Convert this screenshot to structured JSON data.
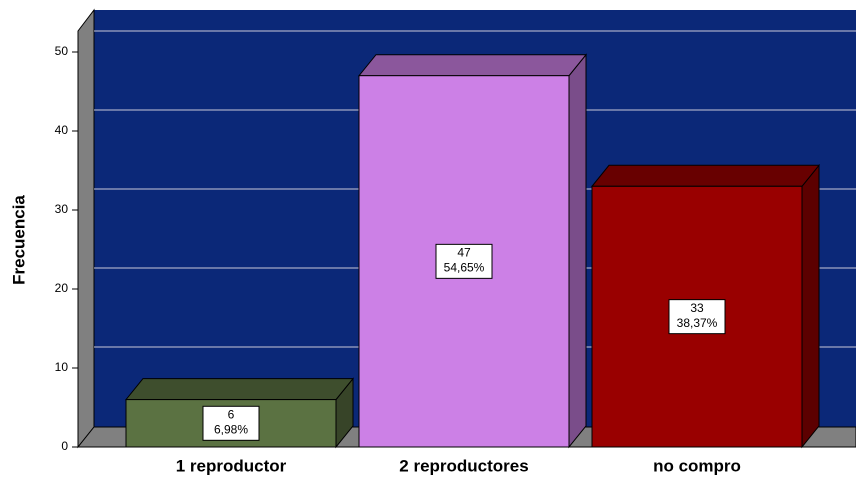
{
  "chart_data": {
    "type": "bar3d",
    "y_label": "Frecuencia",
    "categories": [
      "1 reproductor",
      "2 reproductores",
      "no compro"
    ],
    "values": [
      6,
      47,
      33
    ],
    "percentages": [
      6.98,
      54.65,
      38.37
    ],
    "percentage_labels": [
      "6,98%",
      "54,65%",
      "38,37%"
    ],
    "colors": [
      "#5b7242",
      "#cc80e6",
      "#990000"
    ],
    "ylim": [
      0,
      50
    ],
    "yticks": [
      0,
      10,
      20,
      30,
      40,
      50
    ],
    "grid": true
  }
}
